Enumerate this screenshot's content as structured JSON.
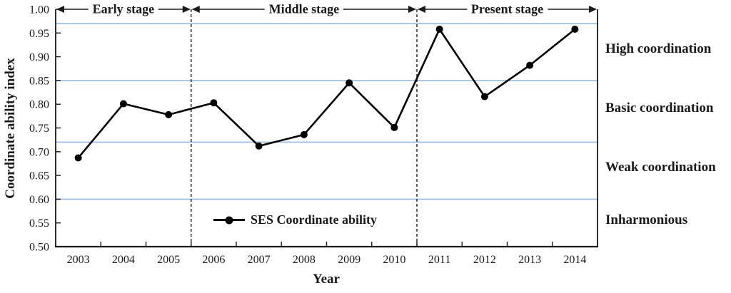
{
  "chart_data": {
    "type": "line",
    "title": "",
    "xlabel": "Year",
    "ylabel": "Coordinate ability index",
    "categories": [
      "2003",
      "2004",
      "2005",
      "2006",
      "2007",
      "2008",
      "2009",
      "2010",
      "2011",
      "2012",
      "2013",
      "2014"
    ],
    "series": [
      {
        "name": "SES Coordinate ability",
        "values": [
          0.687,
          0.801,
          0.778,
          0.803,
          0.712,
          0.736,
          0.845,
          0.751,
          0.958,
          0.816,
          0.882,
          0.958
        ]
      }
    ],
    "ylim": [
      0.5,
      1.0
    ],
    "yticks": [
      "1.00",
      "0.95",
      "0.90",
      "0.85",
      "0.80",
      "0.75",
      "0.70",
      "0.65",
      "0.60",
      "0.55",
      "0.50"
    ],
    "thresholds": [
      0.97,
      0.85,
      0.72,
      0.6
    ],
    "stages": [
      {
        "label": "Early stage",
        "from": "2003",
        "to": "2005"
      },
      {
        "label": "Middle stage",
        "from": "2006",
        "to": "2010"
      },
      {
        "label": "Present stage",
        "from": "2011",
        "to": "2014"
      }
    ],
    "region_labels": [
      {
        "label": "High coordination",
        "between": [
          0.85,
          0.97
        ]
      },
      {
        "label": "Basic coordination",
        "between": [
          0.72,
          0.85
        ]
      },
      {
        "label": "Weak coordination",
        "between": [
          0.6,
          0.72
        ]
      },
      {
        "label": "Inharmonious",
        "between": [
          0.5,
          0.6
        ]
      }
    ],
    "legend": {
      "label": "SES Coordinate ability",
      "position": "bottom-center"
    },
    "grid": false,
    "colors": {
      "line": "#000000",
      "marker": "#000000",
      "threshold": "#95BEE3",
      "axis": "#1a1a1a",
      "divider": "#1a1a1a"
    }
  }
}
